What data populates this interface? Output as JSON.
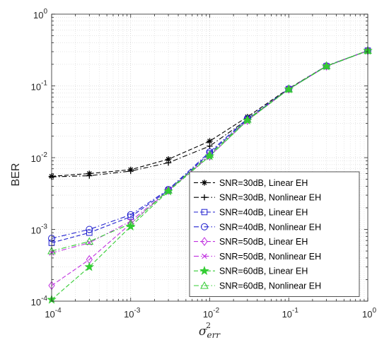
{
  "chart_data": {
    "type": "line",
    "x_scale": "log",
    "y_scale": "log",
    "xlim": [
      0.0001,
      1
    ],
    "ylim": [
      0.0001,
      1
    ],
    "grid": true,
    "legend_position": "bottom-right",
    "ylabel": "BER",
    "xlabel_base": "σ",
    "xlabel_sub": "err",
    "xlabel_sup": "2",
    "x_ticks": [
      {
        "value": 0.0001,
        "base": "10",
        "exp": "-4"
      },
      {
        "value": 0.001,
        "base": "10",
        "exp": "-3"
      },
      {
        "value": 0.01,
        "base": "10",
        "exp": "-2"
      },
      {
        "value": 0.1,
        "base": "10",
        "exp": "-1"
      },
      {
        "value": 1,
        "base": "10",
        "exp": "0"
      }
    ],
    "y_ticks": [
      {
        "value": 0.0001,
        "base": "10",
        "exp": "-4"
      },
      {
        "value": 0.001,
        "base": "10",
        "exp": "-3"
      },
      {
        "value": 0.01,
        "base": "10",
        "exp": "-2"
      },
      {
        "value": 0.1,
        "base": "10",
        "exp": "-1"
      },
      {
        "value": 1,
        "base": "10",
        "exp": "0"
      }
    ],
    "x": [
      0.0001,
      0.0003,
      0.001,
      0.003,
      0.01,
      0.03,
      0.1,
      0.3,
      1
    ],
    "series": [
      {
        "name": "SNR=30dB, Linear EH",
        "color": "#000000",
        "dash": "dash",
        "marker": "asterisk",
        "values": [
          0.0055,
          0.006,
          0.0068,
          0.0095,
          0.017,
          0.037,
          0.092,
          0.19,
          0.31
        ]
      },
      {
        "name": "SNR=30dB, Nonlinear EH",
        "color": "#000000",
        "dash": "dashdot",
        "marker": "plus",
        "values": [
          0.0054,
          0.0056,
          0.0065,
          0.0085,
          0.0145,
          0.034,
          0.09,
          0.188,
          0.308
        ]
      },
      {
        "name": "SNR=40dB, Linear EH",
        "color": "#1f1fcf",
        "dash": "dash",
        "marker": "square",
        "values": [
          0.00065,
          0.0009,
          0.0015,
          0.0035,
          0.0115,
          0.034,
          0.09,
          0.188,
          0.31
        ]
      },
      {
        "name": "SNR=40dB, Nonlinear EH",
        "color": "#1f1fcf",
        "dash": "dashdot",
        "marker": "circle",
        "values": [
          0.00075,
          0.001,
          0.0016,
          0.0036,
          0.012,
          0.035,
          0.091,
          0.19,
          0.31
        ]
      },
      {
        "name": "SNR=50dB, Linear EH",
        "color": "#c030e0",
        "dash": "dash",
        "marker": "diamond",
        "values": [
          0.000165,
          0.00038,
          0.0012,
          0.0035,
          0.0105,
          0.033,
          0.09,
          0.188,
          0.31
        ]
      },
      {
        "name": "SNR=50dB, Nonlinear EH",
        "color": "#c030e0",
        "dash": "dashdot",
        "marker": "x",
        "values": [
          0.00047,
          0.00065,
          0.0013,
          0.0035,
          0.011,
          0.034,
          0.09,
          0.19,
          0.31
        ]
      },
      {
        "name": "SNR=60dB, Linear EH",
        "color": "#33cc33",
        "dash": "dash",
        "marker": "star",
        "values": [
          0.000105,
          0.0003,
          0.0011,
          0.0034,
          0.0105,
          0.033,
          0.09,
          0.188,
          0.31
        ]
      },
      {
        "name": "SNR=60dB, Nonlinear EH",
        "color": "#33cc33",
        "dash": "dashdot",
        "marker": "triangle",
        "values": [
          0.0005,
          0.00068,
          0.0012,
          0.0035,
          0.011,
          0.034,
          0.09,
          0.19,
          0.31
        ]
      }
    ]
  }
}
